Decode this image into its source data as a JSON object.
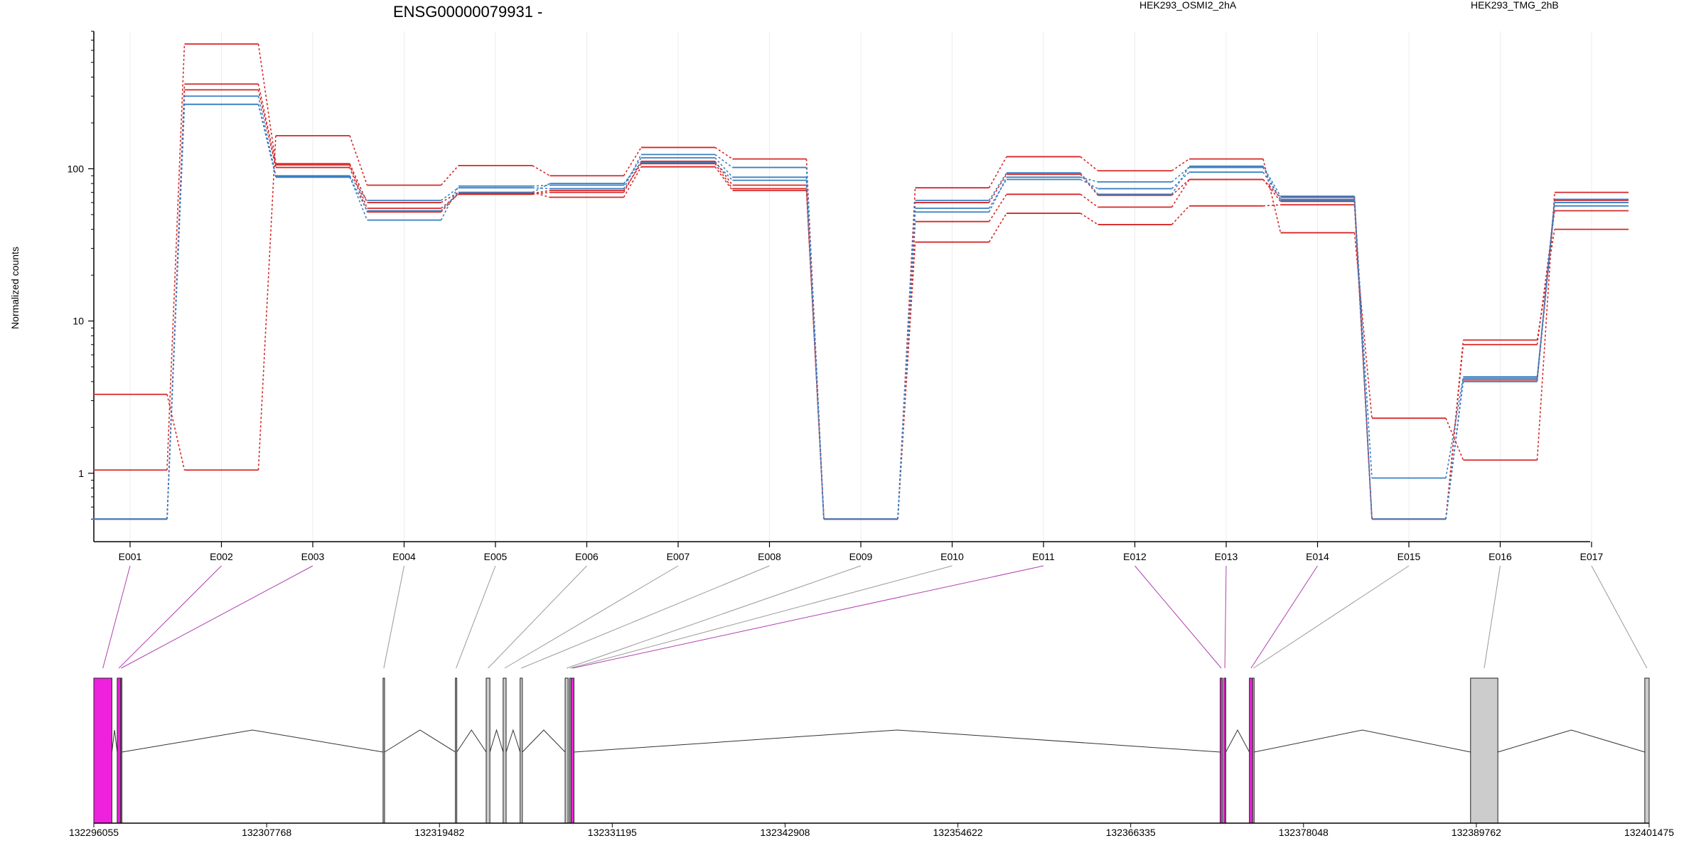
{
  "chart_data": {
    "type": "line",
    "title": "ENSG00000079931 -",
    "ylabel": "Normalized counts",
    "yscale": "log",
    "ylim": [
      0.47,
      800
    ],
    "yticks": [
      1,
      10,
      100
    ],
    "ytick_labels": [
      "1",
      "10",
      "100"
    ],
    "categories": [
      "E001",
      "E002",
      "E003",
      "E004",
      "E005",
      "E006",
      "E007",
      "E008",
      "E009",
      "E010",
      "E011",
      "E012",
      "E013",
      "E014",
      "E015",
      "E016",
      "E017"
    ],
    "legend": [
      {
        "name": "HEK293_OSMI2_2hA",
        "color": "#d62728"
      },
      {
        "name": "HEK293_TMG_2hB",
        "color": "#3a7fc1"
      }
    ],
    "series": [
      {
        "group": "HEK293_OSMI2_2hA",
        "color": "#d62728",
        "values": [
          3.3,
          1.05,
          165,
          78,
          105,
          90,
          138,
          116,
          0.5,
          75,
          120,
          97,
          116,
          38,
          2.3,
          1.22,
          70
        ]
      },
      {
        "group": "HEK293_OSMI2_2hA",
        "color": "#d62728",
        "values": [
          1.05,
          660,
          108,
          60,
          70,
          65,
          103,
          72,
          0.5,
          33,
          51,
          43,
          57,
          58,
          0.5,
          7.5,
          40
        ]
      },
      {
        "group": "HEK293_OSMI2_2hA",
        "color": "#d62728",
        "values": [
          0.5,
          360,
          106,
          55,
          68,
          70,
          112,
          78,
          0.5,
          45,
          68,
          56,
          85,
          61,
          0.5,
          7.0,
          53
        ]
      },
      {
        "group": "HEK293_OSMI2_2hA",
        "color": "#d62728",
        "values": [
          0.5,
          330,
          102,
          52,
          69,
          72,
          108,
          74,
          0.5,
          60,
          92,
          67,
          85,
          65,
          0.5,
          4.1,
          62
        ]
      },
      {
        "group": "HEK293_TMG_2hB",
        "color": "#3a7fc1",
        "values": [
          0.5,
          300,
          90,
          62,
          75,
          74,
          124,
          102,
          0.5,
          52,
          88,
          82,
          102,
          62,
          0.93,
          4.3,
          60
        ]
      },
      {
        "group": "HEK293_TMG_2hB",
        "color": "#3a7fc1",
        "values": [
          0.5,
          265,
          89,
          46,
          77,
          78,
          118,
          88,
          0.5,
          55,
          85,
          74,
          95,
          63,
          0.5,
          4.0,
          57
        ]
      },
      {
        "group": "HEK293_TMG_2hB",
        "color": "#3a7fc1",
        "values": [
          0.5,
          265,
          88,
          53,
          70,
          80,
          110,
          84,
          0.5,
          62,
          94,
          68,
          104,
          66,
          0.5,
          4.2,
          63
        ]
      }
    ],
    "genome_axis": {
      "ticks": [
        "132296055",
        "132307768",
        "132319482",
        "132331195",
        "132342908",
        "132354622",
        "132366335",
        "132378048",
        "132389762",
        "132401475"
      ],
      "range": [
        132296055,
        132401475
      ]
    },
    "exons": [
      {
        "id": "E001",
        "start": 132296055,
        "end": 132297280,
        "color": "#ee22dd"
      },
      {
        "id": "E002",
        "start": 132297640,
        "end": 132297860,
        "color": "#ee22dd"
      },
      {
        "id": "E003",
        "start": 132297860,
        "end": 132297900,
        "color": "#ee22dd"
      },
      {
        "id": "E004",
        "start": 132315660,
        "end": 132315760,
        "color": "#cccccc"
      },
      {
        "id": "E005",
        "start": 132320560,
        "end": 132320650,
        "color": "#cccccc"
      },
      {
        "id": "E006",
        "start": 132322650,
        "end": 132322900,
        "color": "#cccccc"
      },
      {
        "id": "E007",
        "start": 132323800,
        "end": 132324000,
        "color": "#cccccc"
      },
      {
        "id": "E008",
        "start": 132324950,
        "end": 132325100,
        "color": "#cccccc"
      },
      {
        "id": "E009",
        "start": 132328000,
        "end": 132328200,
        "color": "#cccccc"
      },
      {
        "id": "E010",
        "start": 132328300,
        "end": 132328400,
        "color": "#cccccc"
      },
      {
        "id": "E011",
        "start": 132328400,
        "end": 132328600,
        "color": "#ee22dd"
      },
      {
        "id": "E012",
        "start": 132372400,
        "end": 132372550,
        "color": "#ee22dd"
      },
      {
        "id": "E013",
        "start": 132372650,
        "end": 132372780,
        "color": "#ee22dd"
      },
      {
        "id": "E014",
        "start": 132374380,
        "end": 132374600,
        "color": "#ee22dd"
      },
      {
        "id": "E015",
        "start": 132374600,
        "end": 132374700,
        "color": "#cccccc"
      },
      {
        "id": "E016",
        "start": 132389370,
        "end": 132391220,
        "color": "#cccccc"
      },
      {
        "id": "E017",
        "start": 132401180,
        "end": 132401475,
        "color": "#cccccc"
      }
    ],
    "grid": true
  }
}
